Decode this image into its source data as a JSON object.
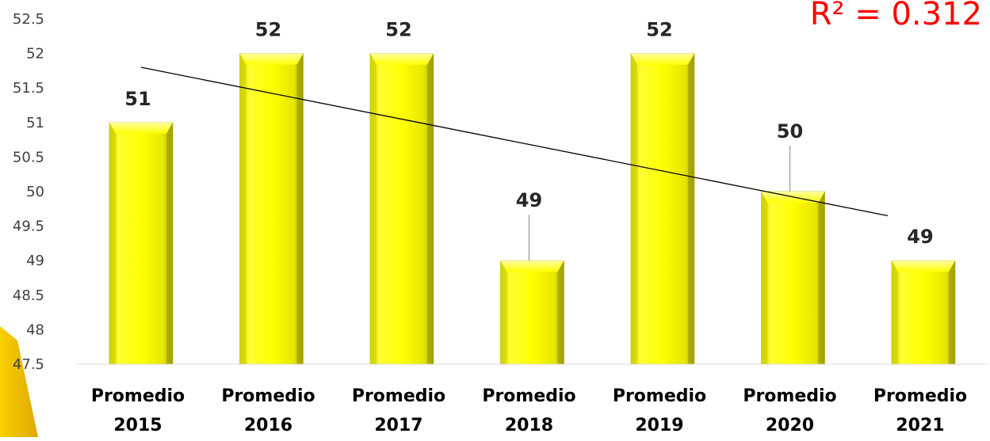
{
  "chart_data": {
    "type": "bar",
    "categories": [
      [
        "Promedio",
        "2015"
      ],
      [
        "Promedio",
        "2016"
      ],
      [
        "Promedio",
        "2017"
      ],
      [
        "Promedio",
        "2018"
      ],
      [
        "Promedio",
        "2019"
      ],
      [
        "Promedio",
        "2020"
      ],
      [
        "Promedio",
        "2021"
      ]
    ],
    "values": [
      51,
      52,
      52,
      49,
      52,
      50,
      49
    ],
    "data_labels": [
      "51",
      "52",
      "52",
      "49",
      "52",
      "50",
      "49"
    ],
    "ylim": [
      47.5,
      52.5
    ],
    "yticks": [
      "52.5",
      "52",
      "51.5",
      "51",
      "50.5",
      "50",
      "49.5",
      "49",
      "48.5",
      "48",
      "47.5"
    ],
    "trendline": {
      "type": "linear",
      "start": 51.8,
      "end": 49.65,
      "r2_text": "R² = 0.312"
    },
    "grid": false,
    "legend": "none",
    "colors": {
      "bar": "#ffff00",
      "bar_shade": "#b8b800",
      "trendline": "#000000",
      "r2_text": "#ff0000",
      "accent": "#f0c000"
    }
  }
}
